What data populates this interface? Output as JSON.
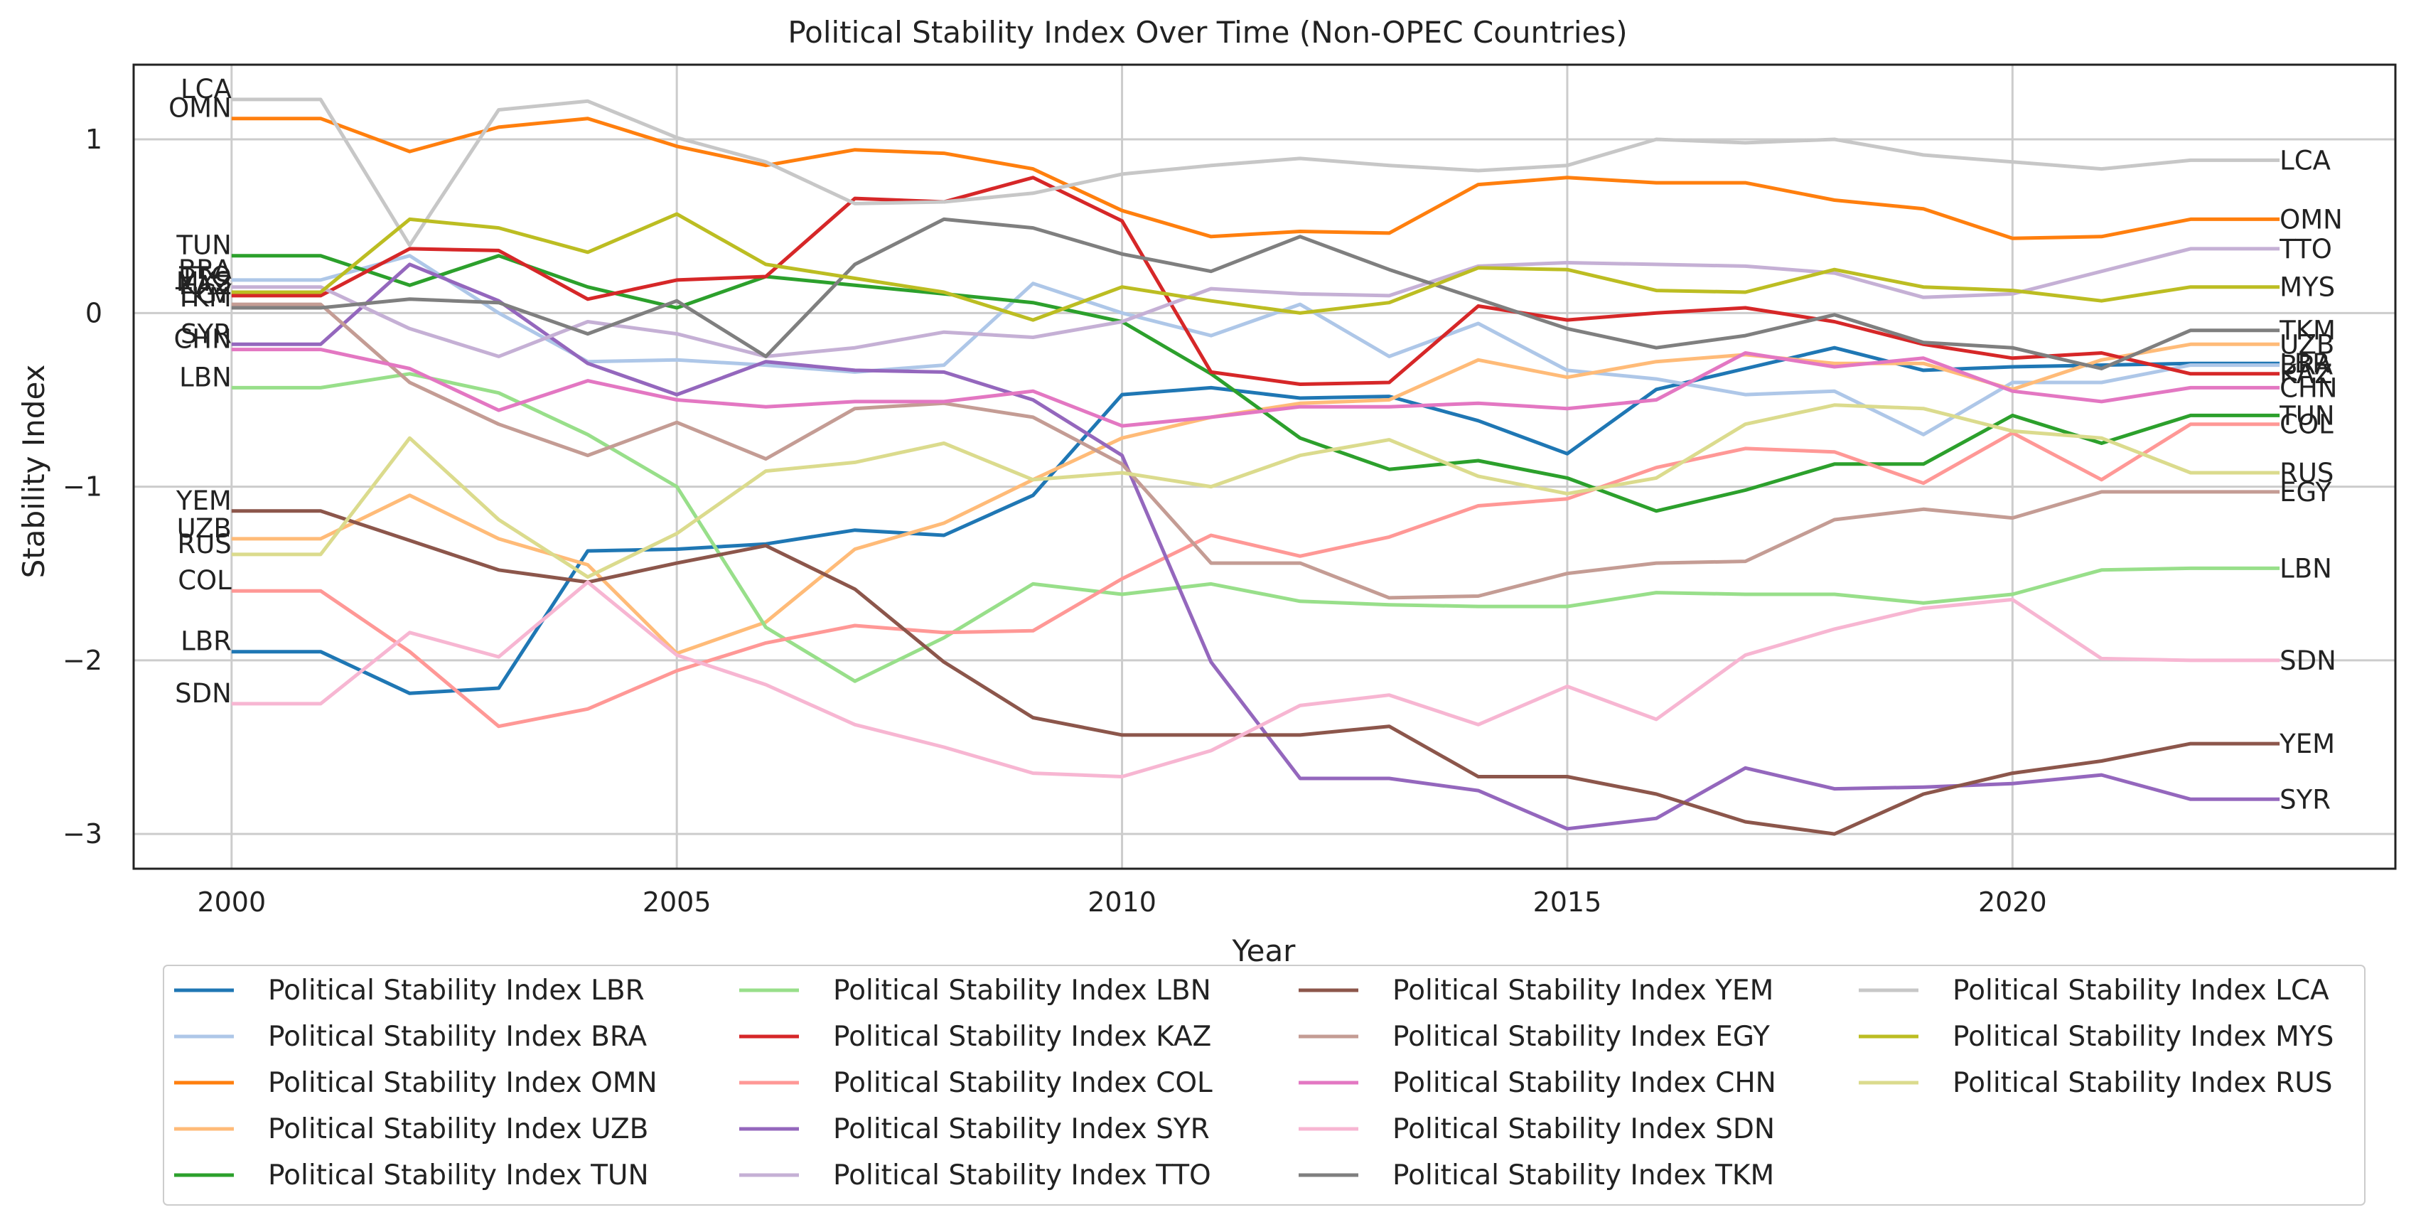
{
  "chart_data": {
    "type": "line",
    "title": "Political Stability Index Over Time (Non-OPEC Countries)",
    "xlabel": "Year",
    "ylabel": "Stability Index",
    "xlim": [
      1998.9,
      2024.3
    ],
    "ylim": [
      -3.2,
      1.43
    ],
    "x_ticks": [
      2000,
      2005,
      2010,
      2015,
      2020
    ],
    "y_ticks": [
      -3,
      -2,
      -1,
      0,
      1
    ],
    "y_tick_labels": [
      "−3",
      "−2",
      "−1",
      "0",
      "1"
    ],
    "grid": true,
    "legend_placement": "bottom",
    "legend_columns": 4,
    "x": [
      2000,
      2001,
      2002,
      2003,
      2004,
      2005,
      2006,
      2007,
      2008,
      2009,
      2010,
      2011,
      2012,
      2013,
      2014,
      2015,
      2016,
      2017,
      2018,
      2019,
      2020,
      2021,
      2022,
      2023
    ],
    "series": [
      {
        "name": "Political Stability Index LBR",
        "code": "LBR",
        "color": "#1f77b4",
        "values": [
          -1.95,
          -1.95,
          -2.19,
          -2.16,
          -1.37,
          -1.36,
          -1.33,
          -1.25,
          -1.28,
          -1.05,
          -0.47,
          -0.43,
          -0.49,
          -0.48,
          -0.62,
          -0.81,
          -0.44,
          -0.32,
          -0.2,
          -0.33,
          -0.31,
          -0.3,
          -0.29,
          -0.29
        ]
      },
      {
        "name": "Political Stability Index BRA",
        "code": "BRA",
        "color": "#aec7e8",
        "values": [
          0.19,
          0.19,
          0.33,
          0.0,
          -0.28,
          -0.27,
          -0.3,
          -0.34,
          -0.3,
          0.17,
          0.0,
          -0.13,
          0.05,
          -0.25,
          -0.06,
          -0.33,
          -0.38,
          -0.47,
          -0.45,
          -0.7,
          -0.4,
          -0.4,
          -0.3,
          -0.3
        ]
      },
      {
        "name": "Political Stability Index OMN",
        "code": "OMN",
        "color": "#ff7f0e",
        "values": [
          1.12,
          1.12,
          0.93,
          1.07,
          1.12,
          0.96,
          0.85,
          0.94,
          0.92,
          0.83,
          0.59,
          0.44,
          0.47,
          0.46,
          0.74,
          0.78,
          0.75,
          0.75,
          0.65,
          0.6,
          0.43,
          0.44,
          0.54,
          0.54
        ]
      },
      {
        "name": "Political Stability Index UZB",
        "code": "UZB",
        "color": "#ffbb78",
        "values": [
          -1.3,
          -1.3,
          -1.05,
          -1.3,
          -1.45,
          -1.96,
          -1.78,
          -1.36,
          -1.21,
          -0.96,
          -0.72,
          -0.6,
          -0.52,
          -0.5,
          -0.27,
          -0.37,
          -0.28,
          -0.24,
          -0.29,
          -0.29,
          -0.44,
          -0.27,
          -0.18,
          -0.18
        ]
      },
      {
        "name": "Political Stability Index TUN",
        "code": "TUN",
        "color": "#2ca02c",
        "values": [
          0.33,
          0.33,
          0.16,
          0.33,
          0.15,
          0.03,
          0.21,
          0.16,
          0.11,
          0.06,
          -0.05,
          -0.35,
          -0.72,
          -0.9,
          -0.85,
          -0.95,
          -1.14,
          -1.02,
          -0.87,
          -0.87,
          -0.59,
          -0.75,
          -0.59,
          -0.59
        ]
      },
      {
        "name": "Political Stability Index LBN",
        "code": "LBN",
        "color": "#98df8a",
        "values": [
          -0.43,
          -0.43,
          -0.35,
          -0.46,
          -0.7,
          -1.0,
          -1.81,
          -2.12,
          -1.87,
          -1.56,
          -1.62,
          -1.56,
          -1.66,
          -1.68,
          -1.69,
          -1.69,
          -1.61,
          -1.62,
          -1.62,
          -1.67,
          -1.62,
          -1.48,
          -1.47,
          -1.47
        ]
      },
      {
        "name": "Political Stability Index KAZ",
        "code": "KAZ",
        "color": "#d62728",
        "values": [
          0.1,
          0.1,
          0.37,
          0.36,
          0.08,
          0.19,
          0.21,
          0.66,
          0.64,
          0.78,
          0.53,
          -0.34,
          -0.41,
          -0.4,
          0.04,
          -0.04,
          0.0,
          0.03,
          -0.05,
          -0.18,
          -0.26,
          -0.23,
          -0.35,
          -0.35
        ]
      },
      {
        "name": "Political Stability Index COL",
        "code": "COL",
        "color": "#ff9896",
        "values": [
          -1.6,
          -1.6,
          -1.95,
          -2.38,
          -2.28,
          -2.06,
          -1.9,
          -1.8,
          -1.84,
          -1.83,
          -1.53,
          -1.28,
          -1.4,
          -1.29,
          -1.11,
          -1.07,
          -0.89,
          -0.78,
          -0.8,
          -0.98,
          -0.69,
          -0.96,
          -0.64,
          -0.64
        ]
      },
      {
        "name": "Political Stability Index SYR",
        "code": "SYR",
        "color": "#9467bd",
        "values": [
          -0.18,
          -0.18,
          0.28,
          0.07,
          -0.29,
          -0.47,
          -0.28,
          -0.33,
          -0.34,
          -0.5,
          -0.82,
          -2.01,
          -2.68,
          -2.68,
          -2.75,
          -2.97,
          -2.91,
          -2.62,
          -2.74,
          -2.73,
          -2.71,
          -2.66,
          -2.8,
          -2.8
        ]
      },
      {
        "name": "Political Stability Index TTO",
        "code": "TTO",
        "color": "#c5b0d5",
        "values": [
          0.15,
          0.15,
          -0.09,
          -0.25,
          -0.05,
          -0.12,
          -0.25,
          -0.2,
          -0.11,
          -0.14,
          -0.05,
          0.14,
          0.11,
          0.1,
          0.27,
          0.29,
          0.28,
          0.27,
          0.23,
          0.09,
          0.11,
          0.24,
          0.37,
          0.37
        ]
      },
      {
        "name": "Political Stability Index YEM",
        "code": "YEM",
        "color": "#8c564b",
        "values": [
          -1.14,
          -1.14,
          -1.31,
          -1.48,
          -1.55,
          -1.44,
          -1.34,
          -1.59,
          -2.01,
          -2.33,
          -2.43,
          -2.43,
          -2.43,
          -2.38,
          -2.67,
          -2.67,
          -2.77,
          -2.93,
          -3.0,
          -2.77,
          -2.65,
          -2.58,
          -2.48,
          -2.48
        ]
      },
      {
        "name": "Political Stability Index EGY",
        "code": "EGY",
        "color": "#c49c94",
        "values": [
          0.05,
          0.05,
          -0.4,
          -0.64,
          -0.82,
          -0.63,
          -0.84,
          -0.55,
          -0.52,
          -0.6,
          -0.87,
          -1.44,
          -1.44,
          -1.64,
          -1.63,
          -1.5,
          -1.44,
          -1.43,
          -1.19,
          -1.13,
          -1.18,
          -1.03,
          -1.03,
          -1.03
        ]
      },
      {
        "name": "Political Stability Index CHN",
        "code": "CHN",
        "color": "#e377c2",
        "values": [
          -0.21,
          -0.21,
          -0.32,
          -0.56,
          -0.39,
          -0.5,
          -0.54,
          -0.51,
          -0.51,
          -0.45,
          -0.65,
          -0.6,
          -0.54,
          -0.54,
          -0.52,
          -0.55,
          -0.5,
          -0.23,
          -0.31,
          -0.26,
          -0.45,
          -0.51,
          -0.43,
          -0.43
        ]
      },
      {
        "name": "Political Stability Index SDN",
        "code": "SDN",
        "color": "#f7b6d2",
        "values": [
          -2.25,
          -2.25,
          -1.84,
          -1.98,
          -1.55,
          -1.97,
          -2.14,
          -2.37,
          -2.5,
          -2.65,
          -2.67,
          -2.52,
          -2.26,
          -2.2,
          -2.37,
          -2.15,
          -2.34,
          -1.97,
          -1.82,
          -1.7,
          -1.65,
          -1.99,
          -2.0,
          -2.0
        ]
      },
      {
        "name": "Political Stability Index TKM",
        "code": "TKM",
        "color": "#7f7f7f",
        "values": [
          0.03,
          0.03,
          0.08,
          0.06,
          -0.12,
          0.07,
          -0.25,
          0.28,
          0.54,
          0.49,
          0.34,
          0.24,
          0.44,
          0.25,
          0.08,
          -0.09,
          -0.2,
          -0.13,
          -0.01,
          -0.17,
          -0.2,
          -0.32,
          -0.1,
          -0.1
        ]
      },
      {
        "name": "Political Stability Index LCA",
        "code": "LCA",
        "color": "#c7c7c7",
        "values": [
          1.23,
          1.23,
          0.39,
          1.17,
          1.22,
          1.01,
          0.87,
          0.63,
          0.64,
          0.69,
          0.8,
          0.85,
          0.89,
          0.85,
          0.82,
          0.85,
          1.0,
          0.98,
          1.0,
          0.91,
          0.87,
          0.83,
          0.88,
          0.88
        ]
      },
      {
        "name": "Political Stability Index MYS",
        "code": "MYS",
        "color": "#bcbd22",
        "values": [
          0.12,
          0.12,
          0.54,
          0.49,
          0.35,
          0.57,
          0.28,
          0.2,
          0.12,
          -0.04,
          0.15,
          0.07,
          0.0,
          0.06,
          0.26,
          0.25,
          0.13,
          0.12,
          0.25,
          0.15,
          0.13,
          0.07,
          0.15,
          0.15
        ]
      },
      {
        "name": "Political Stability Index RUS",
        "code": "RUS",
        "color": "#dbdb8d",
        "values": [
          -1.39,
          -1.39,
          -0.72,
          -1.19,
          -1.52,
          -1.27,
          -0.91,
          -0.86,
          -0.75,
          -0.96,
          -0.92,
          -1.0,
          -0.82,
          -0.73,
          -0.94,
          -1.04,
          -0.95,
          -0.64,
          -0.53,
          -0.55,
          -0.68,
          -0.72,
          -0.92,
          -0.92
        ]
      }
    ]
  }
}
